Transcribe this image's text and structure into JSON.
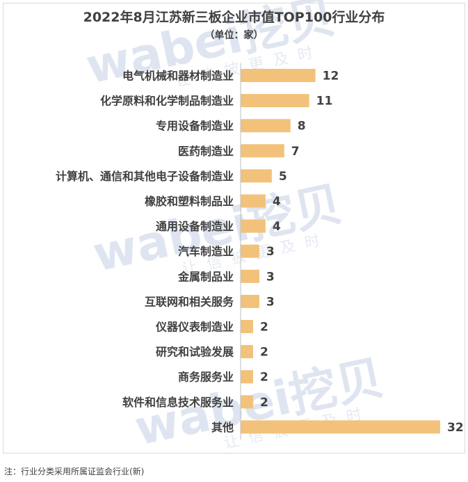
{
  "chart_data": {
    "type": "bar",
    "orientation": "horizontal",
    "title": "2022年8月江苏新三板企业市值TOP100行业分布",
    "subtitle": "（单位：家）",
    "categories": [
      "电气机械和器材制造业",
      "化学原料和化学制品制造业",
      "专用设备制造业",
      "医药制造业",
      "计算机、通信和其他电子设备制造业",
      "橡胶和塑料制品业",
      "通用设备制造业",
      "汽车制造业",
      "金属制品业",
      "互联网和相关服务",
      "仪器仪表制造业",
      "研究和试验发展",
      "商务服务业",
      "软件和信息技术服务业",
      "其他"
    ],
    "values": [
      12,
      11,
      8,
      7,
      5,
      4,
      4,
      3,
      3,
      3,
      2,
      2,
      2,
      2,
      32
    ],
    "xlim": [
      0,
      32
    ],
    "grid": false,
    "bar_color": "#f2c27a",
    "data_labels": true
  },
  "watermark": {
    "brand": "wabei挖贝",
    "slogan": "让信披更及时"
  },
  "note": "注：行业分类采用所属证监会行业(新)"
}
